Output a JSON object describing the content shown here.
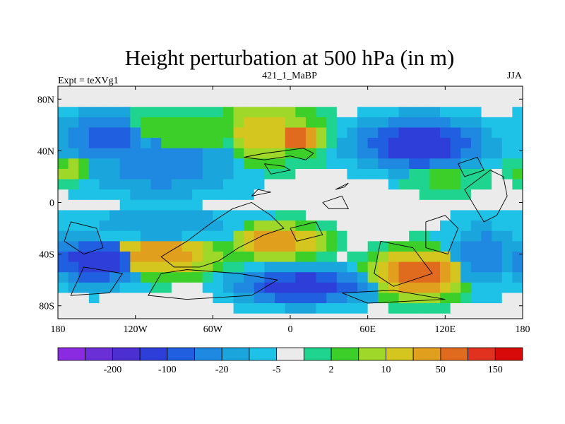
{
  "chart_data": {
    "type": "heatmap",
    "title": "Height perturbation at 500 hPa (in m)",
    "subtitle_left": "Expt = teXVg1",
    "subtitle_center": "421_1_MaBP",
    "subtitle_right": "JJA",
    "xlim": [
      -180,
      180
    ],
    "ylim": [
      -90,
      90
    ],
    "x_ticks": [
      {
        "value": -180,
        "label": "180"
      },
      {
        "value": -120,
        "label": "120W"
      },
      {
        "value": -60,
        "label": "60W"
      },
      {
        "value": 0,
        "label": "0"
      },
      {
        "value": 60,
        "label": "60E"
      },
      {
        "value": 120,
        "label": "120E"
      },
      {
        "value": 180,
        "label": "180"
      }
    ],
    "y_ticks": [
      {
        "value": 80,
        "label": "80N"
      },
      {
        "value": 40,
        "label": "40N"
      },
      {
        "value": 0,
        "label": "0"
      },
      {
        "value": -40,
        "label": "40S"
      },
      {
        "value": -80,
        "label": "80S"
      }
    ],
    "colorbar": {
      "colors": [
        "#8a2be2",
        "#6a2fd6",
        "#4b2fd0",
        "#2d3fd8",
        "#1f5fe0",
        "#1f88e0",
        "#1aa6dc",
        "#1ec2e6",
        "#ebebeb",
        "#1ed48e",
        "#3ccf2a",
        "#a0d82a",
        "#d4c61e",
        "#e0a01e",
        "#e06a1e",
        "#e0321e",
        "#d80a0a"
      ],
      "labels": [
        {
          "after_index": 1,
          "text": "-200"
        },
        {
          "after_index": 3,
          "text": "-100"
        },
        {
          "after_index": 5,
          "text": "-20"
        },
        {
          "after_index": 7,
          "text": "-5"
        },
        {
          "after_index": 9,
          "text": "2"
        },
        {
          "after_index": 11,
          "text": "10"
        },
        {
          "after_index": 13,
          "text": "50"
        },
        {
          "after_index": 15,
          "text": "150"
        }
      ]
    },
    "field_centers": [
      {
        "lon": -140,
        "lat": 50,
        "level": 4,
        "rlon": 40,
        "rlat": 22
      },
      {
        "lon": -100,
        "lat": 30,
        "level": 5,
        "rlon": 60,
        "rlat": 30
      },
      {
        "lon": -80,
        "lat": 55,
        "level": 10,
        "rlon": 60,
        "rlat": 22
      },
      {
        "lon": -20,
        "lat": 55,
        "level": 12,
        "rlon": 45,
        "rlat": 25
      },
      {
        "lon": 5,
        "lat": 50,
        "level": 14,
        "rlon": 22,
        "rlat": 12
      },
      {
        "lon": 100,
        "lat": 45,
        "level": 3,
        "rlon": 55,
        "rlat": 22
      },
      {
        "lon": 120,
        "lat": 20,
        "level": 10,
        "rlon": 25,
        "rlat": 12
      },
      {
        "lon": -170,
        "lat": 25,
        "level": 11,
        "rlon": 18,
        "rlat": 10
      },
      {
        "lon": -100,
        "lat": -15,
        "level": 6,
        "rlon": 70,
        "rlat": 18
      },
      {
        "lon": -150,
        "lat": -45,
        "level": 3,
        "rlon": 40,
        "rlat": 20
      },
      {
        "lon": -100,
        "lat": -40,
        "level": 13,
        "rlon": 50,
        "rlat": 18
      },
      {
        "lon": -10,
        "lat": -30,
        "level": 13,
        "rlon": 40,
        "rlat": 15
      },
      {
        "lon": 10,
        "lat": -65,
        "level": 3,
        "rlon": 55,
        "rlat": 15
      },
      {
        "lon": 100,
        "lat": -55,
        "level": 14,
        "rlon": 40,
        "rlat": 20
      },
      {
        "lon": 150,
        "lat": -40,
        "level": 5,
        "rlon": 30,
        "rlat": 25
      }
    ],
    "no_change_bands": [
      {
        "lat": 80,
        "half_width": 10
      },
      {
        "lat": 0,
        "half_width": 6
      }
    ],
    "continent_outlines": [
      [
        [
          -36,
          35
        ],
        [
          -20,
          38
        ],
        [
          -5,
          40
        ],
        [
          10,
          42
        ],
        [
          18,
          38
        ],
        [
          12,
          33
        ],
        [
          0,
          36
        ],
        [
          -20,
          33
        ],
        [
          -36,
          35
        ]
      ],
      [
        [
          -45,
          -5
        ],
        [
          -30,
          0
        ],
        [
          -15,
          -10
        ],
        [
          -5,
          -20
        ],
        [
          -20,
          -25
        ],
        [
          -40,
          -35
        ],
        [
          -55,
          -45
        ],
        [
          -70,
          -50
        ],
        [
          -90,
          -50
        ],
        [
          -100,
          -42
        ],
        [
          -80,
          -30
        ],
        [
          -60,
          -15
        ],
        [
          -45,
          -5
        ]
      ],
      [
        [
          -100,
          -55
        ],
        [
          -80,
          -52
        ],
        [
          -40,
          -55
        ],
        [
          -10,
          -60
        ],
        [
          -30,
          -72
        ],
        [
          -80,
          -75
        ],
        [
          -110,
          -72
        ],
        [
          -100,
          -55
        ]
      ],
      [
        [
          -170,
          -15
        ],
        [
          -150,
          -20
        ],
        [
          -145,
          -35
        ],
        [
          -160,
          -40
        ],
        [
          -175,
          -30
        ],
        [
          -170,
          -15
        ]
      ],
      [
        [
          -160,
          -50
        ],
        [
          -130,
          -55
        ],
        [
          -140,
          -70
        ],
        [
          -170,
          -72
        ],
        [
          -160,
          -50
        ]
      ],
      [
        [
          40,
          -70
        ],
        [
          80,
          -68
        ],
        [
          120,
          -75
        ],
        [
          60,
          -78
        ],
        [
          40,
          -70
        ]
      ],
      [
        [
          70,
          -30
        ],
        [
          95,
          -35
        ],
        [
          110,
          -55
        ],
        [
          80,
          -65
        ],
        [
          65,
          -55
        ],
        [
          70,
          -30
        ]
      ],
      [
        [
          105,
          -15
        ],
        [
          120,
          -10
        ],
        [
          130,
          -20
        ],
        [
          122,
          -40
        ],
        [
          105,
          -35
        ],
        [
          105,
          -15
        ]
      ],
      [
        [
          135,
          10
        ],
        [
          155,
          25
        ],
        [
          165,
          20
        ],
        [
          168,
          5
        ],
        [
          160,
          -10
        ],
        [
          150,
          -15
        ],
        [
          135,
          10
        ]
      ],
      [
        [
          25,
          0
        ],
        [
          40,
          5
        ],
        [
          45,
          -5
        ],
        [
          30,
          -5
        ],
        [
          25,
          0
        ]
      ],
      [
        [
          35,
          10
        ],
        [
          45,
          15
        ],
        [
          42,
          12
        ],
        [
          35,
          10
        ]
      ],
      [
        [
          -20,
          30
        ],
        [
          -5,
          28
        ],
        [
          0,
          25
        ],
        [
          -15,
          22
        ],
        [
          -20,
          30
        ]
      ],
      [
        [
          -30,
          5
        ],
        [
          -25,
          10
        ],
        [
          -15,
          8
        ],
        [
          -30,
          5
        ]
      ],
      [
        [
          0,
          -20
        ],
        [
          20,
          -15
        ],
        [
          25,
          -25
        ],
        [
          5,
          -30
        ],
        [
          0,
          -20
        ]
      ],
      [
        [
          130,
          30
        ],
        [
          145,
          35
        ],
        [
          150,
          25
        ],
        [
          135,
          20
        ],
        [
          130,
          30
        ]
      ]
    ]
  }
}
